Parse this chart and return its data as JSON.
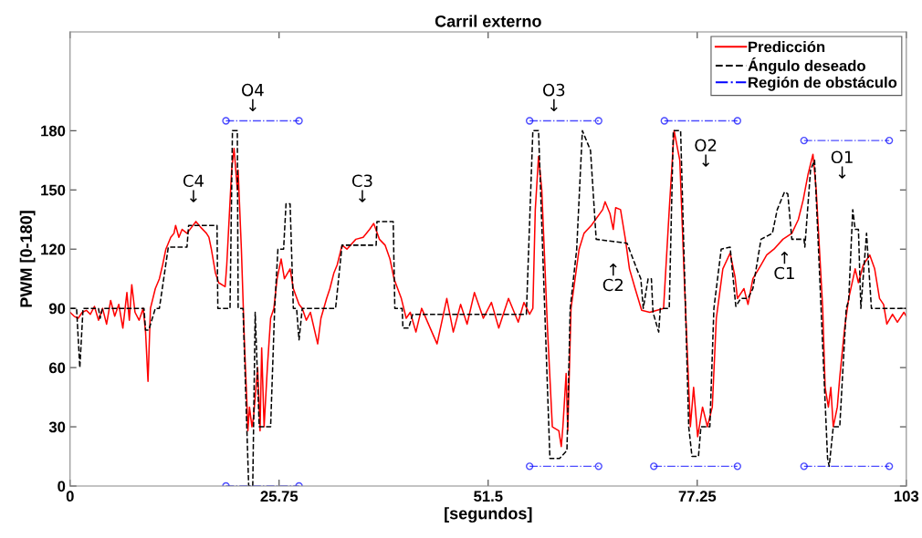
{
  "chart_data": {
    "type": "line",
    "title": "Carril externo",
    "xlabel": "[segundos]",
    "ylabel": "PWM [0-180]",
    "xlim": [
      0,
      103
    ],
    "xticks": [
      0,
      25.75,
      51.5,
      77.25,
      103
    ],
    "ylim": [
      0,
      230
    ],
    "yticks": [
      0,
      30,
      60,
      90,
      120,
      150,
      180
    ],
    "grid": false,
    "legend": "top right",
    "series": [
      {
        "name": "Predicción",
        "color": "#ff0000",
        "line_style": "solid",
        "marker": "none",
        "x": [
          0,
          0.5,
          1,
          1.5,
          2,
          2.5,
          3,
          3.5,
          4,
          4.5,
          5,
          5.5,
          6,
          6.5,
          7,
          7.3,
          7.6,
          8,
          8.5,
          9,
          9.3,
          9.6,
          9.9,
          10.5,
          11.0,
          11.4,
          11.8,
          12.4,
          12.8,
          13.0,
          13.4,
          13.8,
          14.4,
          15.5,
          16.1,
          16.8,
          17.1,
          17.4,
          17.9,
          18.3,
          19.1,
          19.3,
          19.9,
          20.2,
          20.6,
          20.7,
          21.1,
          21.5,
          21.8,
          21.9,
          22.1,
          22.4,
          22.6,
          23.1,
          23.4,
          23.6,
          23.9,
          24.3,
          24.7,
          25.1,
          25.5,
          26.0,
          26.4,
          27.1,
          27.5,
          28.2,
          28.6,
          29.1,
          29.6,
          30.5,
          30.9,
          31.6,
          32.0,
          32.5,
          32.9,
          33.5,
          34.1,
          35.2,
          36.1,
          36.9,
          37.4,
          38.1,
          38.8,
          39.4,
          39.9,
          40.8,
          41.4,
          41.9,
          42.6,
          43.3,
          45.2,
          46.4,
          47.2,
          48.1,
          48.9,
          49.8,
          50.9,
          51.9,
          52.8,
          54.0,
          55.2,
          55.9,
          56.6,
          57.0,
          57.3,
          57.7,
          58.1,
          58.8,
          59.4,
          60.2,
          60.5,
          60.7,
          61.1,
          61.3,
          61.7,
          62.2,
          62.7,
          63.3,
          64.2,
          65.6,
          65.9,
          66.5,
          66.9,
          67.2,
          67.8,
          68.4,
          68.9,
          69.6,
          70.4,
          71.4,
          73.1,
          73.8,
          74.4,
          75.1,
          75.7,
          76.4,
          76.8,
          77.3,
          77.9,
          78.5,
          79.1,
          79.6,
          80.4,
          81.3,
          81.9,
          82.2,
          83.0,
          83.5,
          84.1,
          85.1,
          85.8,
          86.7,
          87.8,
          88.9,
          89.7,
          90.3,
          90.9,
          91.5,
          91.9,
          92.7,
          93.0,
          93.4,
          93.7,
          94.0,
          94.5,
          94.8,
          95.4,
          95.9,
          96.7,
          97.1,
          97.7,
          98.5,
          99.1,
          99.7,
          100.2,
          100.6,
          101.3,
          101.9,
          102.7,
          103
        ],
        "values": [
          88,
          86,
          85,
          88,
          89,
          87,
          91,
          84,
          90,
          82,
          94,
          86,
          92,
          80,
          98,
          84,
          102,
          88,
          84,
          90,
          78,
          53,
          90,
          100,
          105,
          112,
          120,
          126,
          128,
          132,
          126,
          130,
          128,
          134,
          131,
          128,
          126,
          120,
          108,
          103,
          101,
          112,
          160,
          171,
          150,
          160,
          120,
          70,
          40,
          28,
          40,
          30,
          35,
          60,
          28,
          70,
          30,
          60,
          85,
          90,
          105,
          115,
          105,
          110,
          100,
          92,
          90,
          84,
          88,
          72,
          85,
          95,
          100,
          108,
          112,
          122,
          120,
          125,
          126,
          130,
          133,
          125,
          122,
          115,
          105,
          95,
          85,
          88,
          78,
          90,
          72,
          95,
          78,
          92,
          82,
          98,
          85,
          93,
          80,
          95,
          83,
          93,
          87,
          90,
          140,
          167,
          150,
          80,
          30,
          28,
          20,
          30,
          57,
          28,
          90,
          105,
          120,
          128,
          132,
          140,
          144,
          138,
          130,
          141,
          140,
          125,
          110,
          100,
          89,
          88,
          90,
          140,
          180,
          165,
          100,
          30,
          50,
          25,
          40,
          30,
          40,
          85,
          110,
          118,
          106,
          95,
          100,
          92,
          105,
          112,
          117,
          120,
          125,
          128,
          135,
          145,
          158,
          168,
          150,
          90,
          50,
          40,
          50,
          30,
          40,
          55,
          80,
          95,
          110,
          103,
          112,
          117,
          110,
          95,
          92,
          82,
          87,
          83,
          88,
          86
        ]
      },
      {
        "name": "Ángulo deseado",
        "color": "#000000",
        "line_style": "dashed",
        "marker": "none",
        "x": [
          0,
          0.8,
          1.2,
          1.6,
          3.5,
          3.7,
          4.0,
          9.1,
          9.3,
          9.7,
          10.5,
          11.0,
          12.1,
          14.4,
          14.6,
          18.1,
          18.2,
          19.7,
          20.0,
          20.6,
          20.7,
          21.3,
          22.0,
          22.5,
          22.8,
          23.3,
          24.7,
          25.2,
          25.6,
          26.3,
          26.6,
          27.1,
          27.5,
          27.9,
          28.2,
          28.6,
          32.7,
          33.5,
          37.7,
          37.8,
          39.8,
          40.0,
          40.9,
          41.0,
          41.7,
          42.2,
          56.2,
          57.0,
          57.7,
          59.1,
          60.3,
          61.2,
          61.6,
          62.4,
          63.1,
          64.1,
          64.8,
          68.6,
          69.8,
          70.3,
          70.6,
          71.2,
          71.6,
          71.8,
          72.5,
          72.7,
          73.8,
          74.3,
          75.2,
          76.2,
          76.6,
          77.4,
          77.7,
          78.8,
          79.3,
          80.2,
          81.3,
          82.0,
          82.6,
          83.5,
          84.1,
          85.1,
          86.5,
          87.1,
          88.0,
          88.4,
          88.9,
          90.4,
          90.5,
          91.2,
          91.7,
          92.5,
          93.3,
          93.5,
          94.0,
          94.8,
          95.6,
          95.9,
          96.4,
          96.7,
          97.1,
          97.4,
          98.1,
          98.7,
          103
        ],
        "values": [
          90,
          90,
          60,
          90,
          90,
          85,
          90,
          90,
          79,
          79,
          90,
          90,
          121,
          121,
          132,
          132,
          90,
          90,
          180,
          180,
          90,
          90,
          0,
          0,
          88,
          30,
          30,
          90,
          120,
          120,
          143,
          143,
          90,
          90,
          74,
          90,
          90,
          122,
          122,
          134,
          134,
          90,
          90,
          80,
          80,
          87,
          87,
          180,
          180,
          14,
          14,
          18,
          90,
          120,
          180,
          170,
          125,
          123,
          110,
          105,
          90,
          105,
          105,
          88,
          78,
          90,
          90,
          180,
          180,
          30,
          15,
          15,
          30,
          30,
          90,
          120,
          121,
          91,
          95,
          95,
          100,
          125,
          128,
          140,
          149,
          148,
          125,
          125,
          121,
          160,
          165,
          90,
          14,
          10,
          30,
          30,
          90,
          94,
          140,
          130,
          130,
          90,
          128,
          90,
          90
        ]
      },
      {
        "name": "Región de obstáculo",
        "color": "#0000ff",
        "line_style": "dashdot",
        "marker": "circle",
        "x": [
          19.2,
          28.2
        ],
        "values": [
          185,
          185
        ]
      },
      {
        "color": "#0000ff",
        "line_style": "dashdot",
        "marker": "circle",
        "x": [
          19.2,
          28.2
        ],
        "values": [
          0,
          0
        ]
      },
      {
        "color": "#0000ff",
        "line_style": "dashdot",
        "marker": "circle",
        "x": [
          56.6,
          65.1
        ],
        "values": [
          185,
          185
        ]
      },
      {
        "color": "#0000ff",
        "line_style": "dashdot",
        "marker": "circle",
        "x": [
          56.6,
          65.1
        ],
        "values": [
          10,
          10
        ]
      },
      {
        "color": "#0000ff",
        "line_style": "dashdot",
        "marker": "circle",
        "x": [
          73.2,
          82.2
        ],
        "values": [
          185,
          185
        ]
      },
      {
        "color": "#0000ff",
        "line_style": "dashdot",
        "marker": "circle",
        "x": [
          71.9,
          82.2
        ],
        "values": [
          10,
          10
        ]
      },
      {
        "color": "#0000ff",
        "line_style": "dashdot",
        "marker": "circle",
        "x": [
          90.4,
          100.9
        ],
        "values": [
          175,
          175
        ]
      },
      {
        "color": "#0000ff",
        "line_style": "dashdot",
        "marker": "circle",
        "x": [
          90.4,
          100.9
        ],
        "values": [
          10,
          10
        ]
      }
    ],
    "annotations": [
      "C4\n↓",
      "O4\n↓",
      "C3\n↓",
      "O3\n↓",
      "↑\nC2",
      "O2\n↓",
      "↑\nC1",
      "O1\n↓"
    ]
  }
}
